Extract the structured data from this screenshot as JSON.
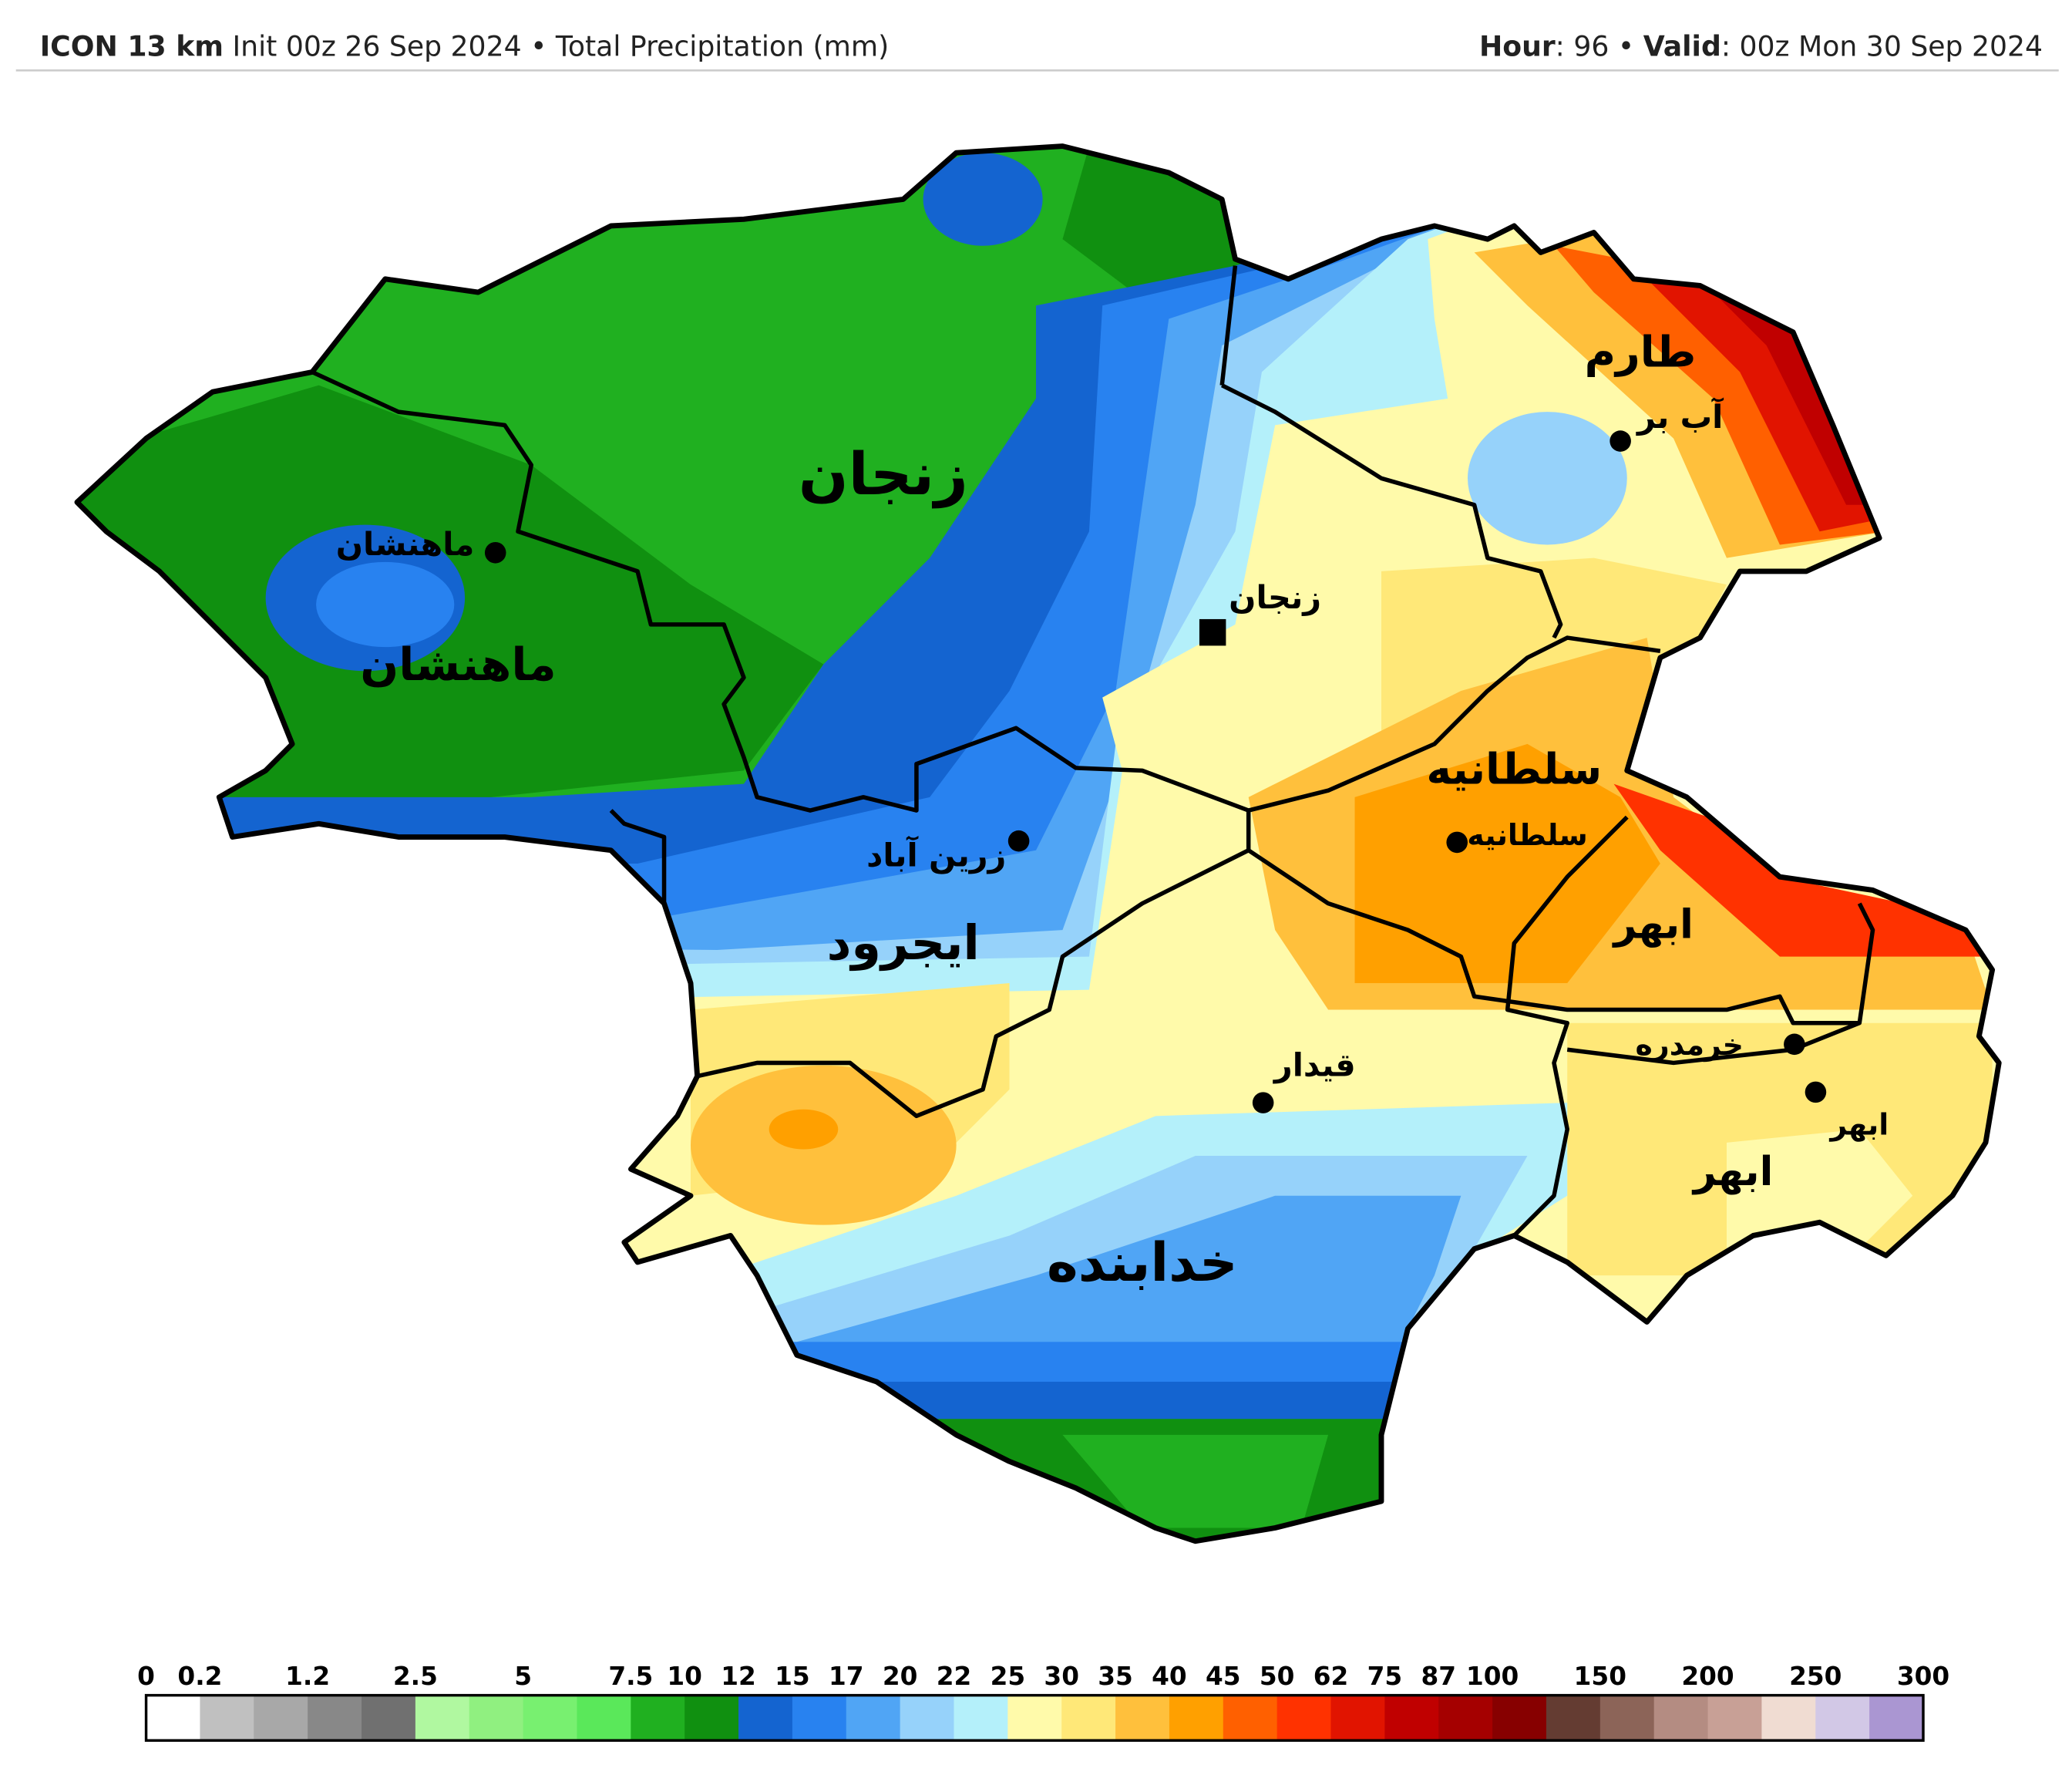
{
  "header": {
    "left_bold": "ICON 13 km",
    "left": "Init 00z 26 Sep 2024 • Total Precipitation (mm)",
    "right": [
      {
        "bold": "Hour",
        "text": ": 96 •"
      },
      {
        "bold": "Valid",
        "text": ": 00z Mon 30 Sep 2024"
      }
    ]
  },
  "map": {
    "labels": [
      "زنجان",
      "ماهنشان",
      "ماهنشان",
      "طارم",
      "آب بر",
      "زنجان",
      "سلطانیه",
      "سلطانیه",
      "زرین آباد",
      "ایجرود",
      "ابهر",
      "خرمدره",
      "ابهر",
      "ابهر",
      "قیدار",
      "خدابنده"
    ]
  },
  "colorbar": {
    "ticks": [
      0,
      0.2,
      1.2,
      2.5,
      5,
      7.5,
      10,
      12,
      15,
      17,
      20,
      22,
      25,
      30,
      35,
      40,
      45,
      50,
      62,
      75,
      87,
      100,
      150,
      200,
      250,
      300
    ],
    "colors": [
      "#ffffff",
      "#c0c0c0",
      "#a8a8a8",
      "#888888",
      "#707070",
      "#b0f8a0",
      "#90f080",
      "#78f070",
      "#5ae85a",
      "#20b020",
      "#109010",
      "#1464d0",
      "#2882f0",
      "#50a5f5",
      "#96d2fa",
      "#b4f0fa",
      "#fffaaa",
      "#ffe878",
      "#ffc03c",
      "#ffa000",
      "#ff6000",
      "#ff3200",
      "#e11400",
      "#c00000",
      "#a50000",
      "#870000",
      "#643c32",
      "#8c6458",
      "#b48c82",
      "#c8a096",
      "#f0dcd2",
      "#d2c8e6",
      "#aa96d2"
    ]
  }
}
